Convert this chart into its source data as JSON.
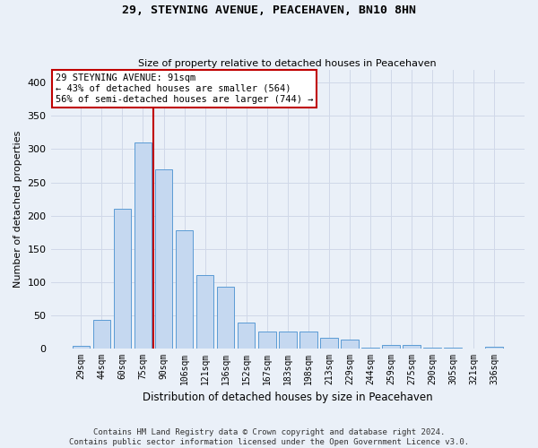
{
  "title": "29, STEYNING AVENUE, PEACEHAVEN, BN10 8HN",
  "subtitle": "Size of property relative to detached houses in Peacehaven",
  "xlabel": "Distribution of detached houses by size in Peacehaven",
  "ylabel": "Number of detached properties",
  "categories": [
    "29sqm",
    "44sqm",
    "60sqm",
    "75sqm",
    "90sqm",
    "106sqm",
    "121sqm",
    "136sqm",
    "152sqm",
    "167sqm",
    "183sqm",
    "198sqm",
    "213sqm",
    "229sqm",
    "244sqm",
    "259sqm",
    "275sqm",
    "290sqm",
    "305sqm",
    "321sqm",
    "336sqm"
  ],
  "values": [
    4,
    42,
    210,
    310,
    270,
    178,
    110,
    92,
    38,
    25,
    25,
    25,
    15,
    13,
    1,
    5,
    5,
    1,
    1,
    0,
    2
  ],
  "bar_color": "#c5d8f0",
  "bar_edge_color": "#5b9bd5",
  "marker_line_color": "#c00000",
  "marker_label": "29 STEYNING AVENUE: 91sqm",
  "annotation_line1": "← 43% of detached houses are smaller (564)",
  "annotation_line2": "56% of semi-detached houses are larger (744) →",
  "annotation_box_color": "#ffffff",
  "annotation_box_edge_color": "#c00000",
  "grid_color": "#d0d8e8",
  "background_color": "#eaf0f8",
  "ylim": [
    0,
    420
  ],
  "yticks": [
    0,
    50,
    100,
    150,
    200,
    250,
    300,
    350,
    400
  ],
  "footer_line1": "Contains HM Land Registry data © Crown copyright and database right 2024.",
  "footer_line2": "Contains public sector information licensed under the Open Government Licence v3.0."
}
